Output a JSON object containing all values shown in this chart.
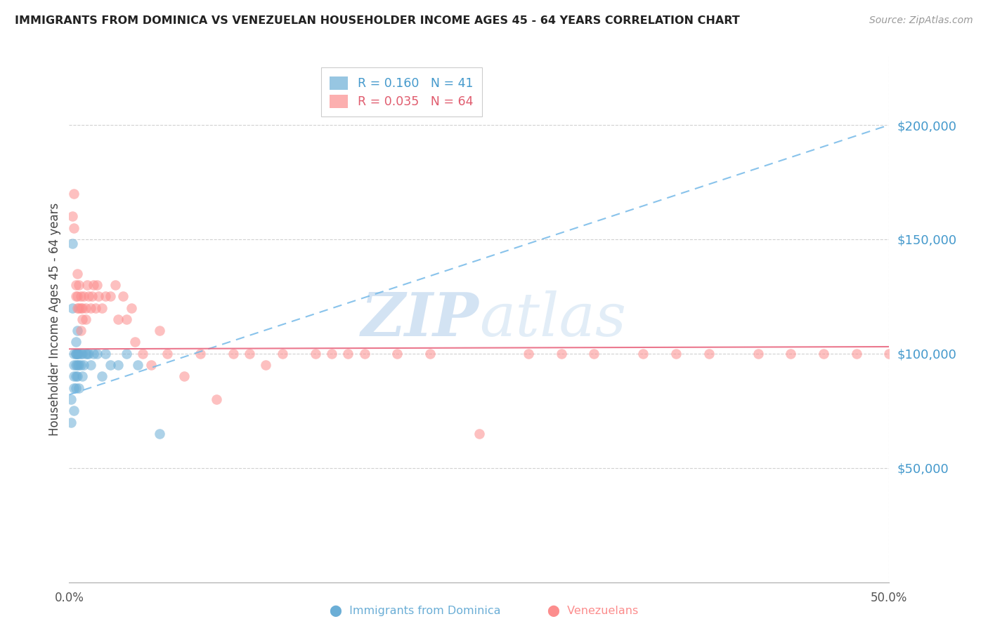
{
  "title": "IMMIGRANTS FROM DOMINICA VS VENEZUELAN HOUSEHOLDER INCOME AGES 45 - 64 YEARS CORRELATION CHART",
  "source": "Source: ZipAtlas.com",
  "ylabel": "Householder Income Ages 45 - 64 years",
  "ytick_values": [
    50000,
    100000,
    150000,
    200000
  ],
  "ylim": [
    0,
    230000
  ],
  "xlim": [
    0.0,
    0.5
  ],
  "legend1_label": "R = 0.160   N = 41",
  "legend2_label": "R = 0.035   N = 64",
  "dominica_color": "#6baed6",
  "venezuelan_color": "#fc8d8d",
  "dominica_line_color": "#74b9e8",
  "venezuelan_line_color": "#e8607a",
  "watermark_zip": "ZIP",
  "watermark_atlas": "atlas",
  "dominica_x": [
    0.001,
    0.001,
    0.002,
    0.002,
    0.003,
    0.003,
    0.003,
    0.003,
    0.003,
    0.004,
    0.004,
    0.004,
    0.004,
    0.004,
    0.004,
    0.005,
    0.005,
    0.005,
    0.005,
    0.005,
    0.006,
    0.006,
    0.006,
    0.007,
    0.007,
    0.008,
    0.008,
    0.009,
    0.01,
    0.011,
    0.012,
    0.013,
    0.015,
    0.017,
    0.02,
    0.022,
    0.025,
    0.03,
    0.035,
    0.042,
    0.055
  ],
  "dominica_y": [
    80000,
    70000,
    148000,
    120000,
    100000,
    95000,
    90000,
    85000,
    75000,
    105000,
    100000,
    100000,
    95000,
    90000,
    85000,
    110000,
    100000,
    100000,
    95000,
    90000,
    100000,
    95000,
    85000,
    100000,
    95000,
    100000,
    90000,
    95000,
    100000,
    100000,
    100000,
    95000,
    100000,
    100000,
    90000,
    100000,
    95000,
    95000,
    100000,
    95000,
    65000
  ],
  "venezuelan_x": [
    0.002,
    0.003,
    0.003,
    0.004,
    0.004,
    0.005,
    0.005,
    0.005,
    0.006,
    0.006,
    0.007,
    0.007,
    0.007,
    0.008,
    0.008,
    0.009,
    0.01,
    0.01,
    0.011,
    0.012,
    0.013,
    0.014,
    0.015,
    0.016,
    0.017,
    0.018,
    0.02,
    0.022,
    0.025,
    0.028,
    0.03,
    0.033,
    0.035,
    0.038,
    0.04,
    0.045,
    0.05,
    0.055,
    0.06,
    0.07,
    0.08,
    0.09,
    0.1,
    0.11,
    0.12,
    0.13,
    0.15,
    0.16,
    0.17,
    0.18,
    0.2,
    0.22,
    0.25,
    0.28,
    0.3,
    0.32,
    0.35,
    0.37,
    0.39,
    0.42,
    0.44,
    0.46,
    0.48,
    0.5
  ],
  "venezuelan_y": [
    160000,
    170000,
    155000,
    130000,
    125000,
    135000,
    125000,
    120000,
    130000,
    120000,
    125000,
    120000,
    110000,
    115000,
    120000,
    125000,
    120000,
    115000,
    130000,
    125000,
    120000,
    125000,
    130000,
    120000,
    130000,
    125000,
    120000,
    125000,
    125000,
    130000,
    115000,
    125000,
    115000,
    120000,
    105000,
    100000,
    95000,
    110000,
    100000,
    90000,
    100000,
    80000,
    100000,
    100000,
    95000,
    100000,
    100000,
    100000,
    100000,
    100000,
    100000,
    100000,
    65000,
    100000,
    100000,
    100000,
    100000,
    100000,
    100000,
    100000,
    100000,
    100000,
    100000,
    100000
  ]
}
